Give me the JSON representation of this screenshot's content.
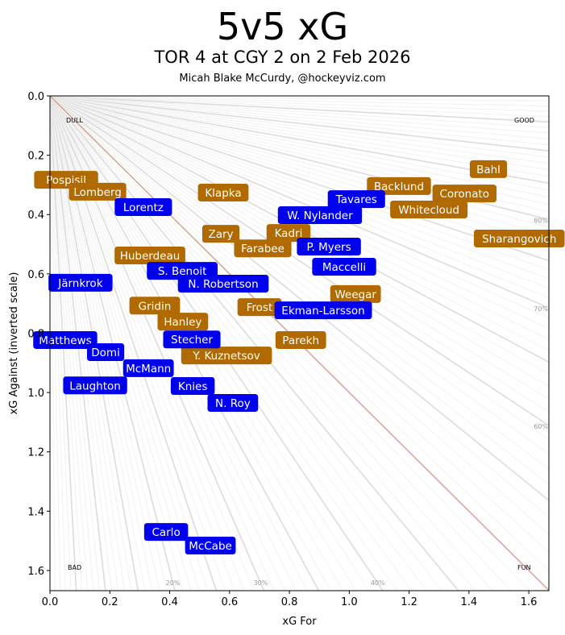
{
  "chart_data": {
    "type": "scatter",
    "title": "5v5 xG",
    "subtitle": "TOR 4 at CGY 2 on 2 Feb 2026",
    "credit": "Micah Blake McCurdy, @hockeyviz.com",
    "xlabel": "xG For",
    "ylabel": "xG Against (inverted scale)",
    "xlim": [
      0,
      1.667
    ],
    "ylim": [
      1.668,
      0
    ],
    "xticks": [
      "0.0",
      "0.2",
      "0.4",
      "0.6",
      "0.8",
      "1.0",
      "1.2",
      "1.4",
      "1.6"
    ],
    "yticks": [
      "0.0",
      "0.2",
      "0.4",
      "0.6",
      "0.8",
      "1.0",
      "1.2",
      "1.4",
      "1.6"
    ],
    "corner_labels": {
      "top_left": "DULL",
      "top_right": "GOOD",
      "bottom_left": "BAD",
      "bottom_right": "FUN"
    },
    "pct_labels": [
      {
        "p": 0.2,
        "text": "20%"
      },
      {
        "p": 0.3,
        "text": "30%"
      },
      {
        "p": 0.4,
        "text": "40%"
      },
      {
        "p": 0.6,
        "text": "60%"
      },
      {
        "p": 0.7,
        "text": "70%"
      },
      {
        "p": 0.8,
        "text": "80%"
      }
    ],
    "colors": {
      "TOR": "#0000ee",
      "CGY": "#b06a00",
      "diag": "#d9a098"
    },
    "series": [
      {
        "name": "CGY",
        "points": [
          {
            "label": "Pospisil",
            "x": 0.054,
            "y": 0.283
          },
          {
            "label": "Lomberg",
            "x": 0.159,
            "y": 0.323
          },
          {
            "label": "Klapka",
            "x": 0.579,
            "y": 0.326
          },
          {
            "label": "Backlund",
            "x": 1.166,
            "y": 0.304
          },
          {
            "label": "Bahl",
            "x": 1.465,
            "y": 0.247
          },
          {
            "label": "Coronato",
            "x": 1.385,
            "y": 0.329
          },
          {
            "label": "Whitecloud",
            "x": 1.266,
            "y": 0.383
          },
          {
            "label": "Sharangovich",
            "x": 1.568,
            "y": 0.481
          },
          {
            "label": "Zary",
            "x": 0.571,
            "y": 0.465
          },
          {
            "label": "Kadri",
            "x": 0.797,
            "y": 0.462
          },
          {
            "label": "Farabee",
            "x": 0.711,
            "y": 0.514
          },
          {
            "label": "Huberdeau",
            "x": 0.334,
            "y": 0.538
          },
          {
            "label": "Gridin",
            "x": 0.35,
            "y": 0.707
          },
          {
            "label": "Hanley",
            "x": 0.444,
            "y": 0.761
          },
          {
            "label": "Frost",
            "x": 0.7,
            "y": 0.712
          },
          {
            "label": "Weegar",
            "x": 1.021,
            "y": 0.668
          },
          {
            "label": "Parekh",
            "x": 0.838,
            "y": 0.823
          },
          {
            "label": "Y. Kuznetsov",
            "x": 0.59,
            "y": 0.875
          }
        ]
      },
      {
        "name": "TOR",
        "points": [
          {
            "label": "Lorentz",
            "x": 0.312,
            "y": 0.375
          },
          {
            "label": "Tavares",
            "x": 1.024,
            "y": 0.348
          },
          {
            "label": "W. Nylander",
            "x": 0.902,
            "y": 0.402
          },
          {
            "label": "P. Myers",
            "x": 0.932,
            "y": 0.508
          },
          {
            "label": "Maccelli",
            "x": 0.983,
            "y": 0.576
          },
          {
            "label": "S. Benoit",
            "x": 0.442,
            "y": 0.59
          },
          {
            "label": "N. Robertson",
            "x": 0.579,
            "y": 0.633
          },
          {
            "label": "Järnkrok",
            "x": 0.102,
            "y": 0.63
          },
          {
            "label": "Ekman-Larsson",
            "x": 0.913,
            "y": 0.723
          },
          {
            "label": "Matthews",
            "x": 0.051,
            "y": 0.823
          },
          {
            "label": "Stecher",
            "x": 0.474,
            "y": 0.821
          },
          {
            "label": "Domi",
            "x": 0.186,
            "y": 0.864
          },
          {
            "label": "McMann",
            "x": 0.329,
            "y": 0.918
          },
          {
            "label": "Laughton",
            "x": 0.151,
            "y": 0.976
          },
          {
            "label": "Knies",
            "x": 0.477,
            "y": 0.978
          },
          {
            "label": "N. Roy",
            "x": 0.611,
            "y": 1.035
          },
          {
            "label": "Carlo",
            "x": 0.388,
            "y": 1.47
          },
          {
            "label": "McCabe",
            "x": 0.536,
            "y": 1.516
          }
        ]
      }
    ]
  }
}
